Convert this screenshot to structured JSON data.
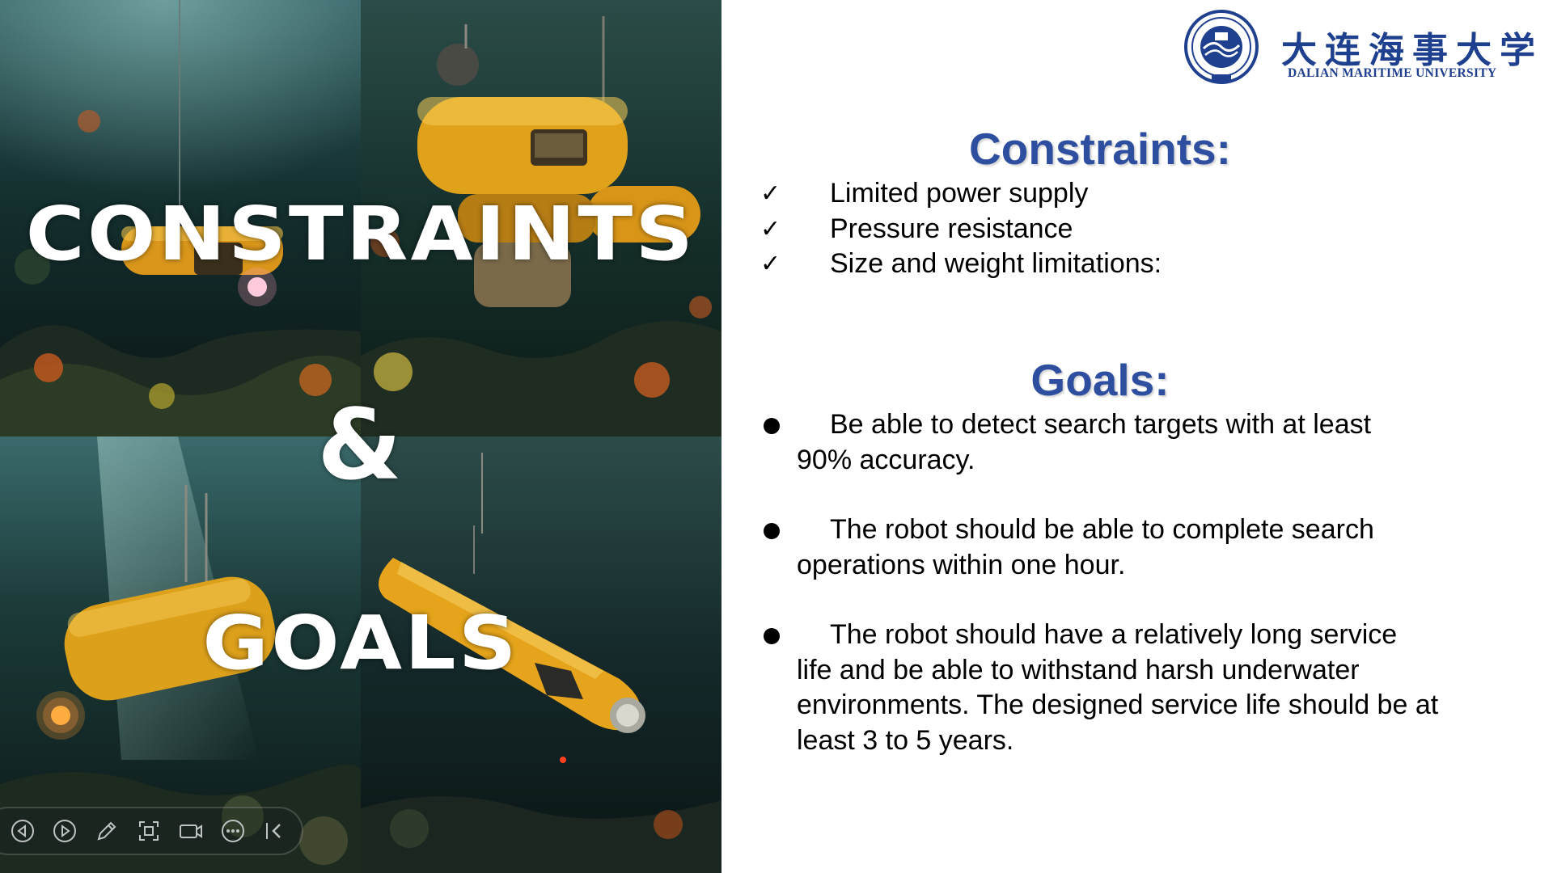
{
  "slide": {
    "left_title": {
      "line1": "CONSTRAINTS",
      "line2": "&",
      "line3": "GOALS"
    },
    "logo": {
      "cn_name": "大连海事大学",
      "en_name": "DALIAN MARITIME UNIVERSITY",
      "icon": "university-emblem-icon"
    },
    "constraints": {
      "heading": "Constraints:",
      "marker": "✓",
      "items": [
        "Limited power supply",
        "Pressure resistance",
        "Size and weight limitations:"
      ]
    },
    "goals": {
      "heading": "Goals:",
      "items": [
        "Be able to detect search targets with at least 90% accuracy.",
        "The robot should be able to complete search operations within one hour.",
        "The robot should have a relatively long service life and be able to withstand harsh underwater environments. The designed service life should be at least 3 to 5 years."
      ]
    },
    "colors": {
      "heading": "#2e4fa0",
      "logo": "#1f3f8f",
      "submarine": "#e8a317"
    }
  },
  "player_toolbar": {
    "buttons": [
      "previous-icon",
      "next-icon",
      "pen-icon",
      "screenshot-icon",
      "camera-icon",
      "more-icon",
      "collapse-icon"
    ]
  }
}
